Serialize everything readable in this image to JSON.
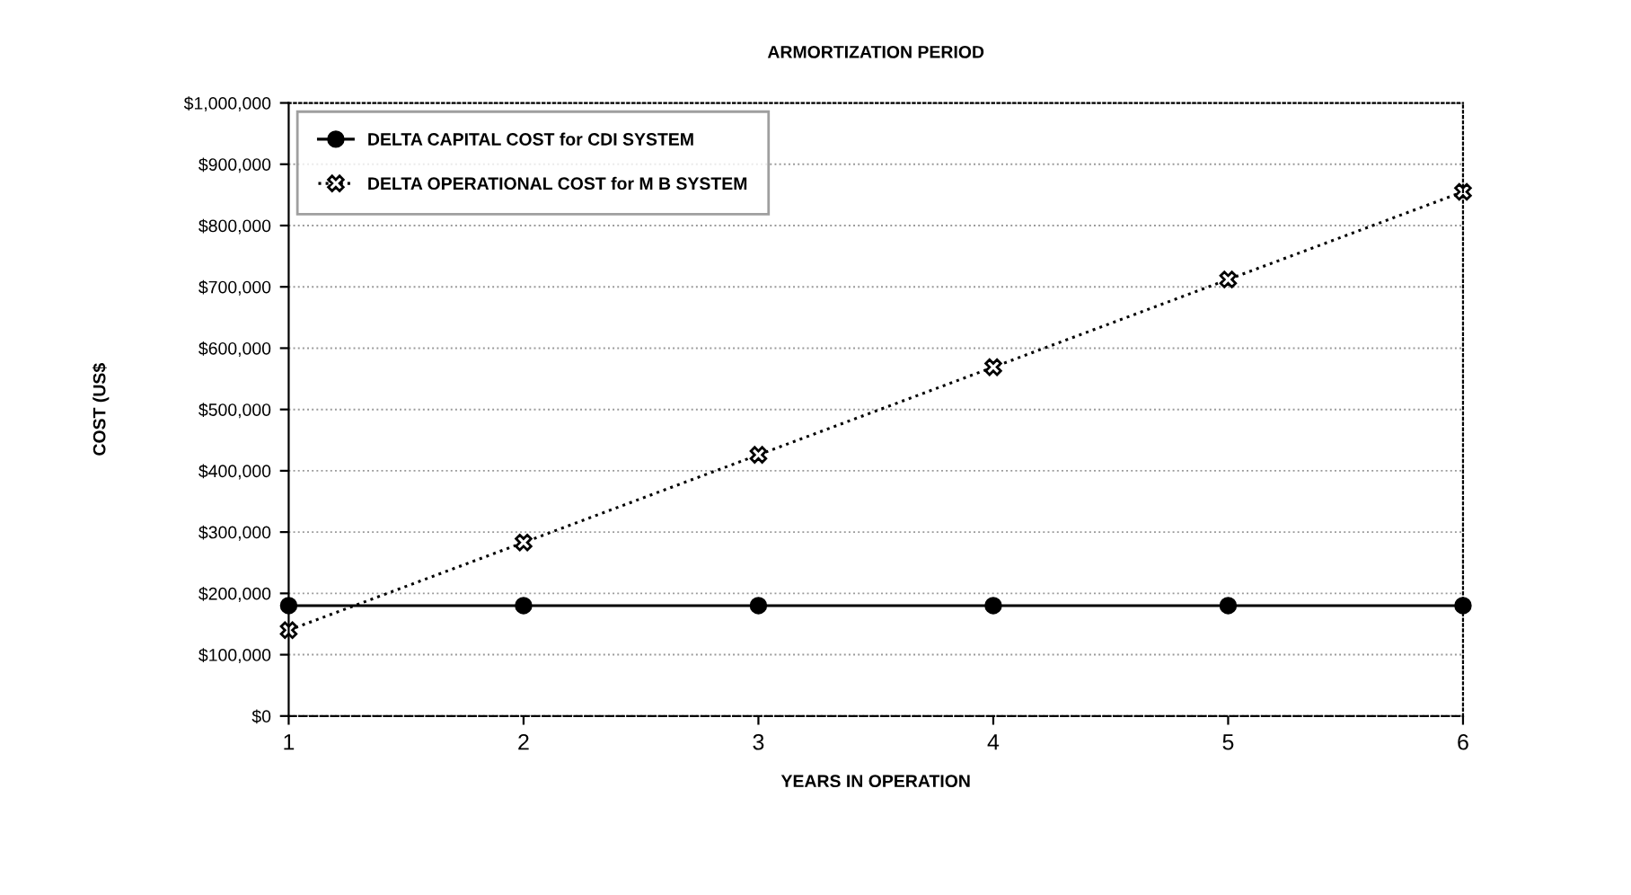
{
  "chart_data": {
    "type": "line",
    "title": "ARMORTIZATION PERIOD",
    "xlabel": "YEARS IN OPERATION",
    "ylabel": "COST (US$",
    "x": [
      1,
      2,
      3,
      4,
      5,
      6
    ],
    "series": [
      {
        "name": "DELTA CAPITAL COST for CDI SYSTEM",
        "color": "#000000",
        "values": [
          180000,
          180000,
          180000,
          180000,
          180000,
          180000
        ],
        "marker": "circle",
        "line_style": "solid"
      },
      {
        "name": "DELTA OPERATIONAL COST for M B SYSTEM",
        "color": "#000000",
        "values": [
          140000,
          283000,
          426000,
          569000,
          712000,
          855000
        ],
        "marker": "cross",
        "line_style": "dotted"
      }
    ],
    "xlim": [
      1,
      6
    ],
    "xticks": [
      1,
      2,
      3,
      4,
      5,
      6
    ],
    "ylim": [
      0,
      1000000
    ],
    "yticks": [
      {
        "value": 0,
        "label": "$0"
      },
      {
        "value": 100000,
        "label": "$100,000"
      },
      {
        "value": 200000,
        "label": "$200,000"
      },
      {
        "value": 300000,
        "label": "$300,000"
      },
      {
        "value": 400000,
        "label": "$400,000"
      },
      {
        "value": 500000,
        "label": "$500,000"
      },
      {
        "value": 600000,
        "label": "$600,000"
      },
      {
        "value": 700000,
        "label": "$700,000"
      },
      {
        "value": 800000,
        "label": "$800,000"
      },
      {
        "value": 900000,
        "label": "$900,000"
      },
      {
        "value": 1000000,
        "label": "$1,000,000"
      }
    ],
    "grid": "y",
    "legend": "top left"
  }
}
